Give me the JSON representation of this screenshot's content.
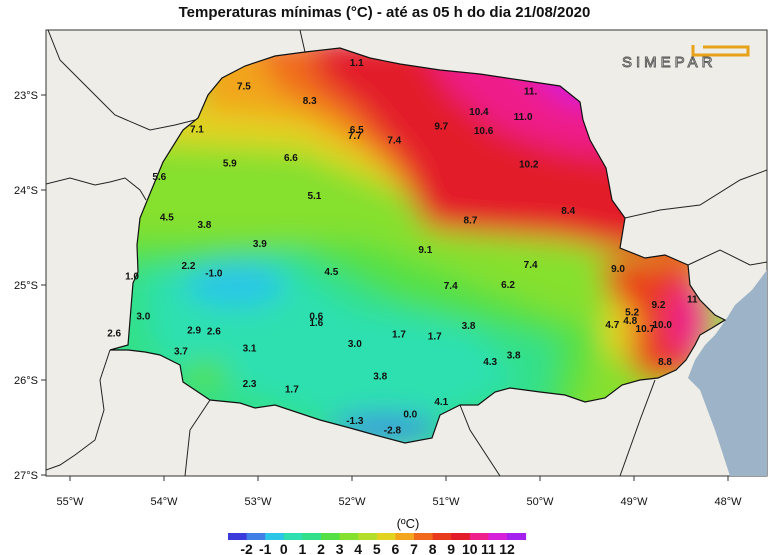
{
  "title": "Temperaturas mínimas (°C) - até as 05 h do dia 21/08/2020",
  "logo_text": "SIMEPAR",
  "unit_label": "(ºC)",
  "lon_labels": [
    "55°W",
    "54°W",
    "53°W",
    "52°W",
    "51°W",
    "50°W",
    "49°W",
    "48°W"
  ],
  "lat_labels": [
    "23°S",
    "24°S",
    "25°S",
    "26°S",
    "27°S"
  ],
  "colorbar": {
    "ticks": [
      "-2",
      "-1",
      "0",
      "1",
      "2",
      "3",
      "4",
      "5",
      "6",
      "7",
      "8",
      "9",
      "10",
      "11",
      "12"
    ],
    "colors": [
      "#3b3bdc",
      "#3f7fe6",
      "#29c6e8",
      "#2ee0b0",
      "#33e08a",
      "#55e045",
      "#86e02e",
      "#b5de2a",
      "#e3d321",
      "#f2a51d",
      "#f06a1a",
      "#ea3a1c",
      "#e31c2c",
      "#ee1f8a",
      "#d61fd8",
      "#a51fee"
    ]
  },
  "stations": [
    {
      "v": "1.1",
      "lon": -51.95,
      "lat": -22.65
    },
    {
      "v": "7.5",
      "lon": -53.15,
      "lat": -22.9
    },
    {
      "v": "8.3",
      "lon": -52.45,
      "lat": -23.05
    },
    {
      "v": "11.",
      "lon": -50.1,
      "lat": -22.95
    },
    {
      "v": "10.4",
      "lon": -50.65,
      "lat": -23.17
    },
    {
      "v": "11.0",
      "lon": -50.18,
      "lat": -23.22
    },
    {
      "v": "7.1",
      "lon": -53.65,
      "lat": -23.35
    },
    {
      "v": "6.5",
      "lon": -51.95,
      "lat": -23.36
    },
    {
      "v": "7.7",
      "lon": -51.97,
      "lat": -23.42
    },
    {
      "v": "9.7",
      "lon": -51.05,
      "lat": -23.32
    },
    {
      "v": "10.6",
      "lon": -50.6,
      "lat": -23.37
    },
    {
      "v": "7.4",
      "lon": -51.55,
      "lat": -23.47
    },
    {
      "v": "6.6",
      "lon": -52.65,
      "lat": -23.65
    },
    {
      "v": "5.9",
      "lon": -53.3,
      "lat": -23.71
    },
    {
      "v": "10.2",
      "lon": -50.12,
      "lat": -23.72
    },
    {
      "v": "5.6",
      "lon": -54.05,
      "lat": -23.85
    },
    {
      "v": "5.1",
      "lon": -52.4,
      "lat": -24.05
    },
    {
      "v": "4.5",
      "lon": -53.97,
      "lat": -24.28
    },
    {
      "v": "3.8",
      "lon": -53.57,
      "lat": -24.36
    },
    {
      "v": "8.4",
      "lon": -49.7,
      "lat": -24.21
    },
    {
      "v": "8.7",
      "lon": -50.74,
      "lat": -24.31
    },
    {
      "v": "3.9",
      "lon": -52.98,
      "lat": -24.56
    },
    {
      "v": "9.1",
      "lon": -51.22,
      "lat": -24.62
    },
    {
      "v": "2.2",
      "lon": -53.74,
      "lat": -24.79
    },
    {
      "v": "-1.0",
      "lon": -53.47,
      "lat": -24.87
    },
    {
      "v": "1.0",
      "lon": -54.34,
      "lat": -24.9
    },
    {
      "v": "4.5",
      "lon": -52.22,
      "lat": -24.85
    },
    {
      "v": "7.4",
      "lon": -50.1,
      "lat": -24.78
    },
    {
      "v": "9.0",
      "lon": -49.17,
      "lat": -24.82
    },
    {
      "v": "6.2",
      "lon": -50.34,
      "lat": -24.99
    },
    {
      "v": "7.4",
      "lon": -50.95,
      "lat": -25.0
    },
    {
      "v": "11",
      "lon": -48.38,
      "lat": -25.14
    },
    {
      "v": "9.2",
      "lon": -48.74,
      "lat": -25.2
    },
    {
      "v": "3.0",
      "lon": -54.22,
      "lat": -25.32
    },
    {
      "v": "0.6",
      "lon": -52.38,
      "lat": -25.32
    },
    {
      "v": "5.2",
      "lon": -49.02,
      "lat": -25.28
    },
    {
      "v": "1.6",
      "lon": -52.38,
      "lat": -25.39
    },
    {
      "v": "4.8",
      "lon": -49.04,
      "lat": -25.37
    },
    {
      "v": "10.0",
      "lon": -48.7,
      "lat": -25.41
    },
    {
      "v": "2.9",
      "lon": -53.68,
      "lat": -25.47
    },
    {
      "v": "2.6",
      "lon": -53.47,
      "lat": -25.48
    },
    {
      "v": "2.6",
      "lon": -54.53,
      "lat": -25.5
    },
    {
      "v": "3.8",
      "lon": -50.76,
      "lat": -25.42
    },
    {
      "v": "4.7",
      "lon": -49.23,
      "lat": -25.41
    },
    {
      "v": "10.7",
      "lon": -48.88,
      "lat": -25.45
    },
    {
      "v": "1.7",
      "lon": -51.5,
      "lat": -25.51
    },
    {
      "v": "1.7",
      "lon": -51.12,
      "lat": -25.53
    },
    {
      "v": "3.0",
      "lon": -51.97,
      "lat": -25.61
    },
    {
      "v": "3.1",
      "lon": -53.09,
      "lat": -25.66
    },
    {
      "v": "3.7",
      "lon": -53.82,
      "lat": -25.69
    },
    {
      "v": "3.8",
      "lon": -50.28,
      "lat": -25.73
    },
    {
      "v": "4.3",
      "lon": -50.53,
      "lat": -25.8
    },
    {
      "v": "8.8",
      "lon": -48.67,
      "lat": -25.8
    },
    {
      "v": "3.8",
      "lon": -51.7,
      "lat": -25.95
    },
    {
      "v": "2.3",
      "lon": -53.09,
      "lat": -26.03
    },
    {
      "v": "1.7",
      "lon": -52.64,
      "lat": -26.09
    },
    {
      "v": "4.1",
      "lon": -51.05,
      "lat": -26.22
    },
    {
      "v": "0.0",
      "lon": -51.38,
      "lat": -26.35
    },
    {
      "v": "-1.3",
      "lon": -51.97,
      "lat": -26.42
    },
    {
      "v": "-2.8",
      "lon": -51.57,
      "lat": -26.52
    }
  ]
}
